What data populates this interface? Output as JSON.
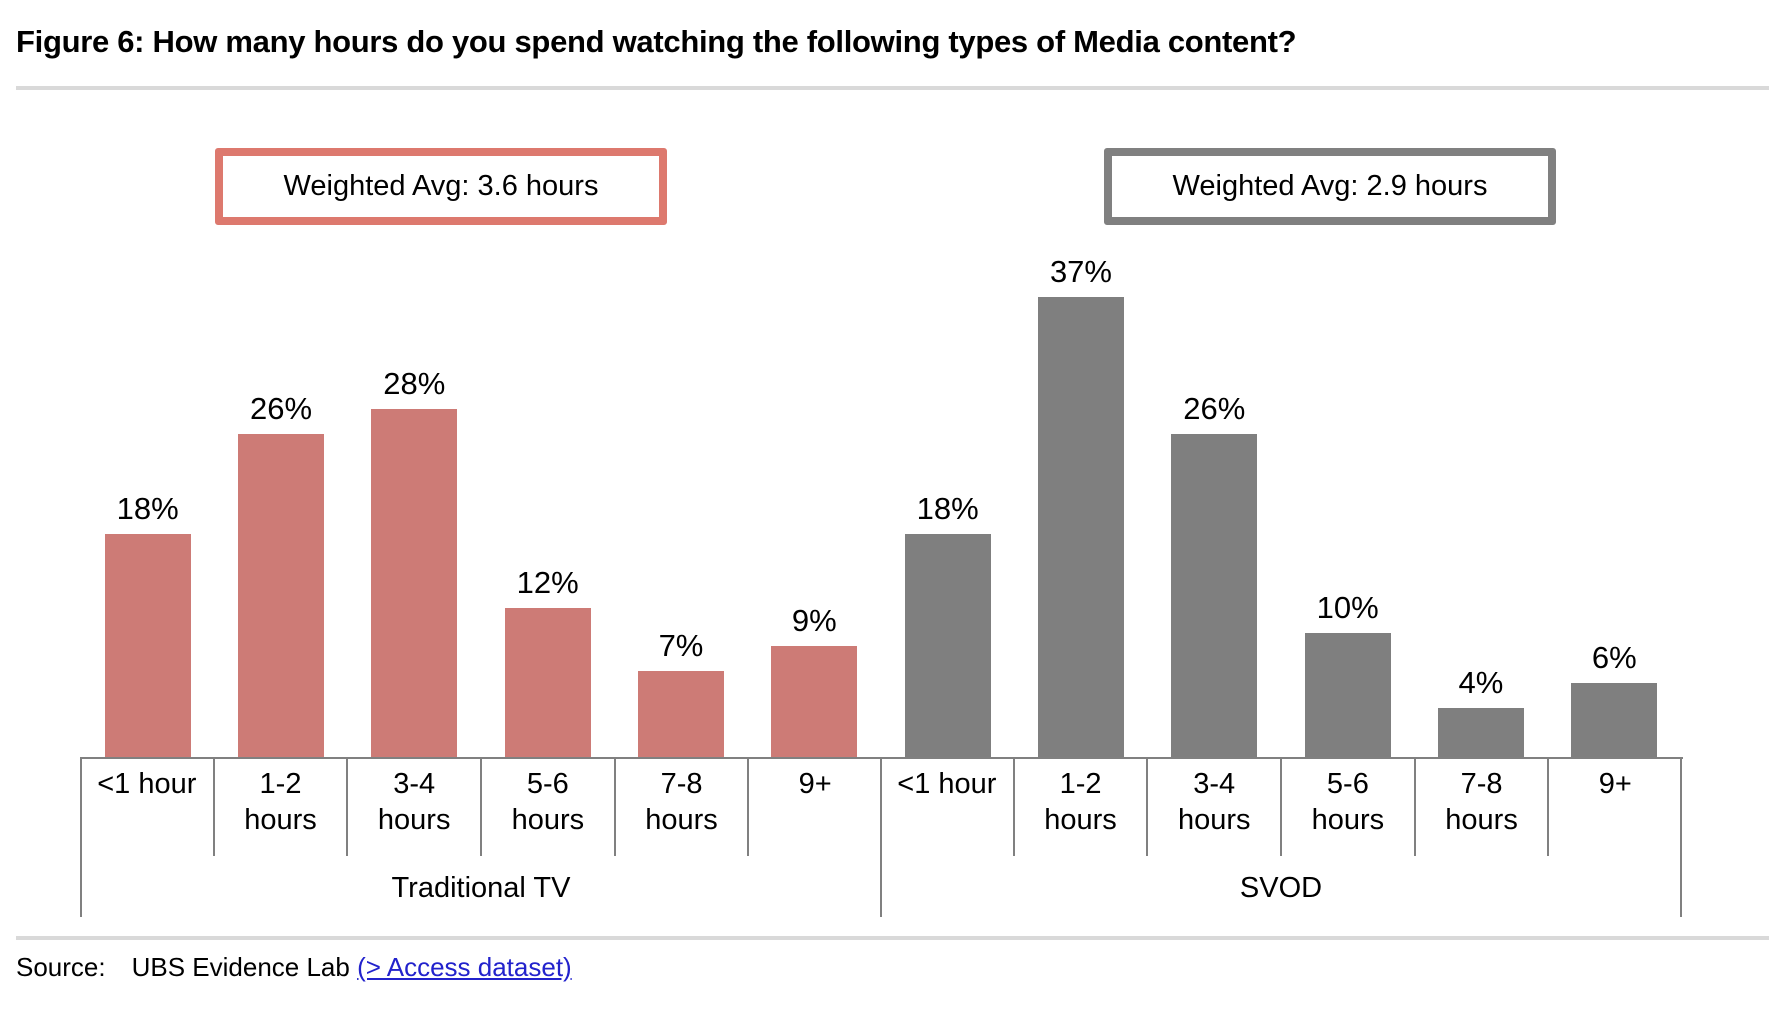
{
  "title": "Figure 6: How many hours do you spend watching the following types of Media content?",
  "chart_data": {
    "type": "bar",
    "title": "Figure 6: How many hours do you spend watching the following types of Media content?",
    "categories": [
      "<1 hour",
      "1-2\nhours",
      "3-4\nhours",
      "5-6\nhours",
      "7-8\nhours",
      "9+"
    ],
    "series": [
      {
        "name": "Traditional TV",
        "color": "#cd7b76",
        "values": [
          18,
          26,
          28,
          12,
          7,
          9
        ],
        "labels": [
          "18%",
          "26%",
          "28%",
          "12%",
          "7%",
          "9%"
        ],
        "annotation": "Weighted Avg: 3.6 hours"
      },
      {
        "name": "SVOD",
        "color": "#7f7f7f",
        "values": [
          18,
          37,
          26,
          10,
          4,
          6
        ],
        "labels": [
          "18%",
          "37%",
          "26%",
          "10%",
          "4%",
          "6%"
        ],
        "annotation": "Weighted Avg: 2.9 hours"
      }
    ],
    "ylim": [
      0,
      40
    ],
    "value_label_format": "percent",
    "grid": false,
    "legend_position": "none",
    "axis_color": "#808080",
    "annotation_border_colors": [
      "#dd796e",
      "#808080"
    ]
  },
  "source": {
    "prefix": "Source:",
    "text": "UBS Evidence Lab",
    "link_text": "(> Access dataset)"
  }
}
